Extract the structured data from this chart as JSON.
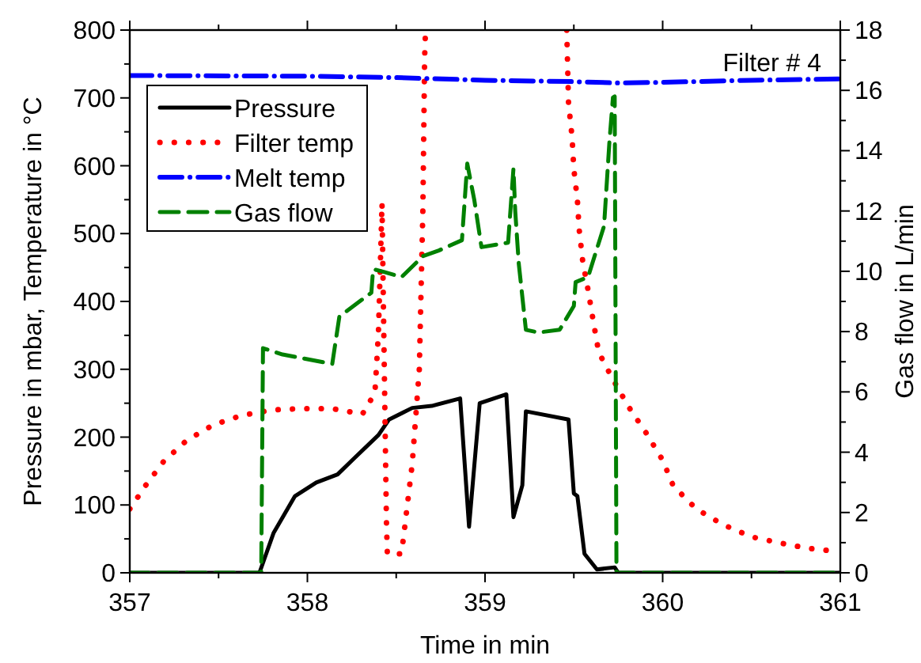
{
  "chart_data": {
    "type": "line",
    "xlabel": "Time in min",
    "ylabel": "Pressure in mbar, Temperature in °C",
    "y2label": "Gas flow in L/min",
    "xlim": [
      357,
      361
    ],
    "xticks": [
      357,
      358,
      359,
      360,
      361
    ],
    "ylim": [
      0,
      800
    ],
    "yticks": [
      0,
      100,
      200,
      300,
      400,
      500,
      600,
      700,
      800
    ],
    "y2lim": [
      0,
      18
    ],
    "y2ticks": [
      0,
      2,
      4,
      6,
      8,
      10,
      12,
      14,
      16,
      18
    ],
    "grid": false,
    "legend": "top left",
    "annotations": [
      "Filter # 4"
    ],
    "series": [
      {
        "name": "Pressure",
        "color": "#000000",
        "line_style": "solid",
        "x": [
          357,
          357.73,
          357.81,
          357.93,
          358.05,
          358.17,
          358.26,
          358.4,
          358.46,
          358.59,
          358.7,
          358.86,
          358.91,
          358.97,
          359.12,
          359.16,
          359.21,
          359.23,
          359.47,
          359.5,
          359.52,
          359.56,
          359.63,
          359.73,
          359.75,
          361
        ],
        "values": [
          0,
          0,
          59,
          113,
          133,
          145,
          168,
          203,
          226,
          243,
          246,
          257,
          68,
          250,
          263,
          82,
          129,
          238,
          226,
          117,
          113,
          28,
          5,
          8,
          0,
          0
        ]
      },
      {
        "name": "Filter temp",
        "color": "#ff0000",
        "line_style": "dotted",
        "x": [
          357,
          357.09,
          357.19,
          357.32,
          357.47,
          357.63,
          357.8,
          357.96,
          358.14,
          358.31,
          358.38,
          358.39,
          358.4,
          358.41,
          358.42,
          358.44,
          358.445,
          358.45,
          358.53,
          358.59,
          358.63,
          358.65,
          358.66,
          358.665,
          359,
          359.46,
          359.47,
          359.49,
          359.5,
          359.52,
          359.53,
          359.55,
          359.58,
          359.61,
          359.64,
          359.72,
          359.81,
          359.91,
          360,
          360.06,
          360.19,
          360.34,
          360.5,
          360.66,
          360.82,
          361
        ],
        "values": [
          94,
          129,
          164,
          195,
          218,
          232,
          240,
          242,
          242,
          234,
          265,
          308,
          355,
          448,
          545,
          168,
          75,
          28,
          28,
          160,
          300,
          533,
          759,
          800,
          null,
          800,
          693,
          642,
          595,
          549,
          506,
          459,
          417,
          370,
          325,
          285,
          244,
          205,
          166,
          128,
          94,
          71,
          53,
          44,
          36,
          31
        ]
      },
      {
        "name": "Melt temp",
        "color": "#0000ff",
        "line_style": "dashdot",
        "x": [
          357,
          358,
          358.5,
          359,
          359.5,
          359.75,
          360,
          360.5,
          361
        ],
        "values": [
          733,
          732,
          730,
          726,
          724,
          722,
          723,
          726,
          728
        ]
      },
      {
        "name": "Gas flow",
        "color": "#008000",
        "line_style": "dashed",
        "axis": "y2",
        "x": [
          357,
          357.74,
          357.75,
          357.86,
          358.14,
          358.18,
          358.36,
          358.37,
          358.43,
          358.53,
          358.65,
          358.74,
          358.87,
          358.9,
          358.92,
          358.94,
          358.98,
          359.13,
          359.16,
          359.17,
          359.19,
          359.23,
          359.3,
          359.42,
          359.5,
          359.51,
          359.58,
          359.67,
          359.7,
          359.72,
          359.73,
          359.74,
          361
        ],
        "values": [
          0,
          0,
          7.45,
          7.24,
          6.93,
          8.5,
          9.29,
          10.07,
          9.98,
          9.81,
          10.5,
          10.69,
          11.03,
          13.57,
          12.96,
          12.35,
          10.8,
          10.95,
          13.4,
          12,
          10.25,
          8.06,
          7.97,
          8.06,
          8.85,
          9.64,
          9.81,
          11.5,
          14.27,
          15.76,
          15.8,
          0,
          0
        ]
      }
    ]
  }
}
